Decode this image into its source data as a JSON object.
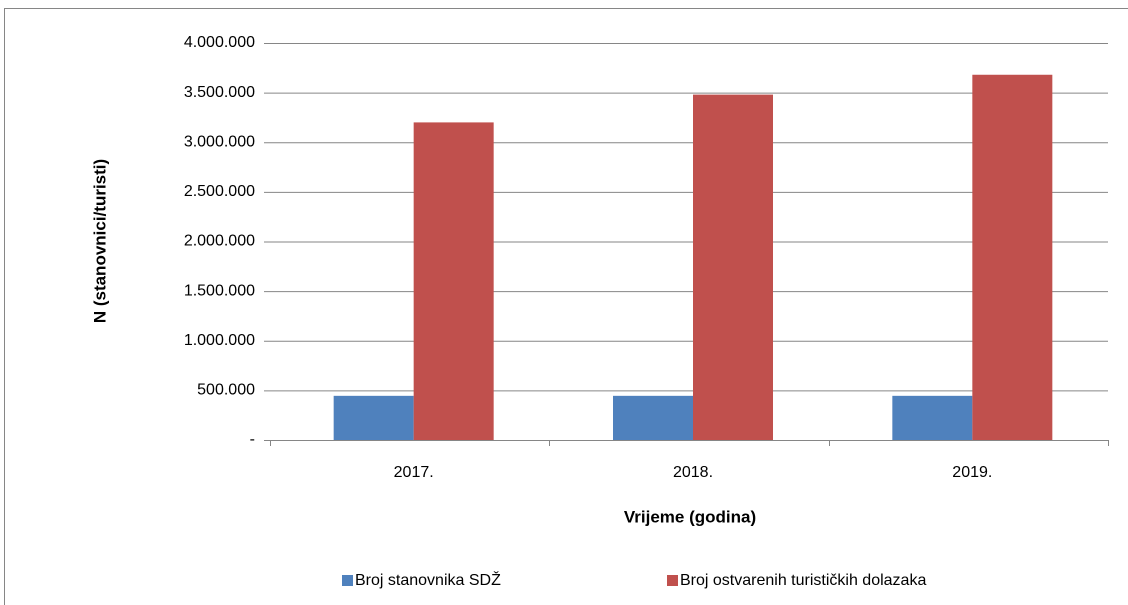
{
  "chart_data": {
    "type": "bar",
    "x_label": "Vrijeme (godina)",
    "y_label": "N (stanovnici/turisti)",
    "categories": [
      "2017.",
      "2018.",
      "2019."
    ],
    "series": [
      {
        "name": "Broj stanovnika SDŽ",
        "color": "#4f81bd",
        "values": [
          445000,
          445000,
          445000
        ]
      },
      {
        "name": "Broj ostvarenih turističkih dolazaka",
        "color": "#c0504d",
        "values": [
          3200000,
          3480000,
          3680000
        ]
      }
    ],
    "ylim": [
      0,
      4000000
    ],
    "yticks": [
      {
        "value": 0,
        "label": "-"
      },
      {
        "value": 500000,
        "label": "500.000"
      },
      {
        "value": 1000000,
        "label": "1.000.000"
      },
      {
        "value": 1500000,
        "label": "1.500.000"
      },
      {
        "value": 2000000,
        "label": "2.000.000"
      },
      {
        "value": 2500000,
        "label": "2.500.000"
      },
      {
        "value": 3000000,
        "label": "3.000.000"
      },
      {
        "value": 3500000,
        "label": "3.500.000"
      },
      {
        "value": 4000000,
        "label": "4.000.000"
      }
    ],
    "grid": true,
    "legend": "bottom"
  }
}
